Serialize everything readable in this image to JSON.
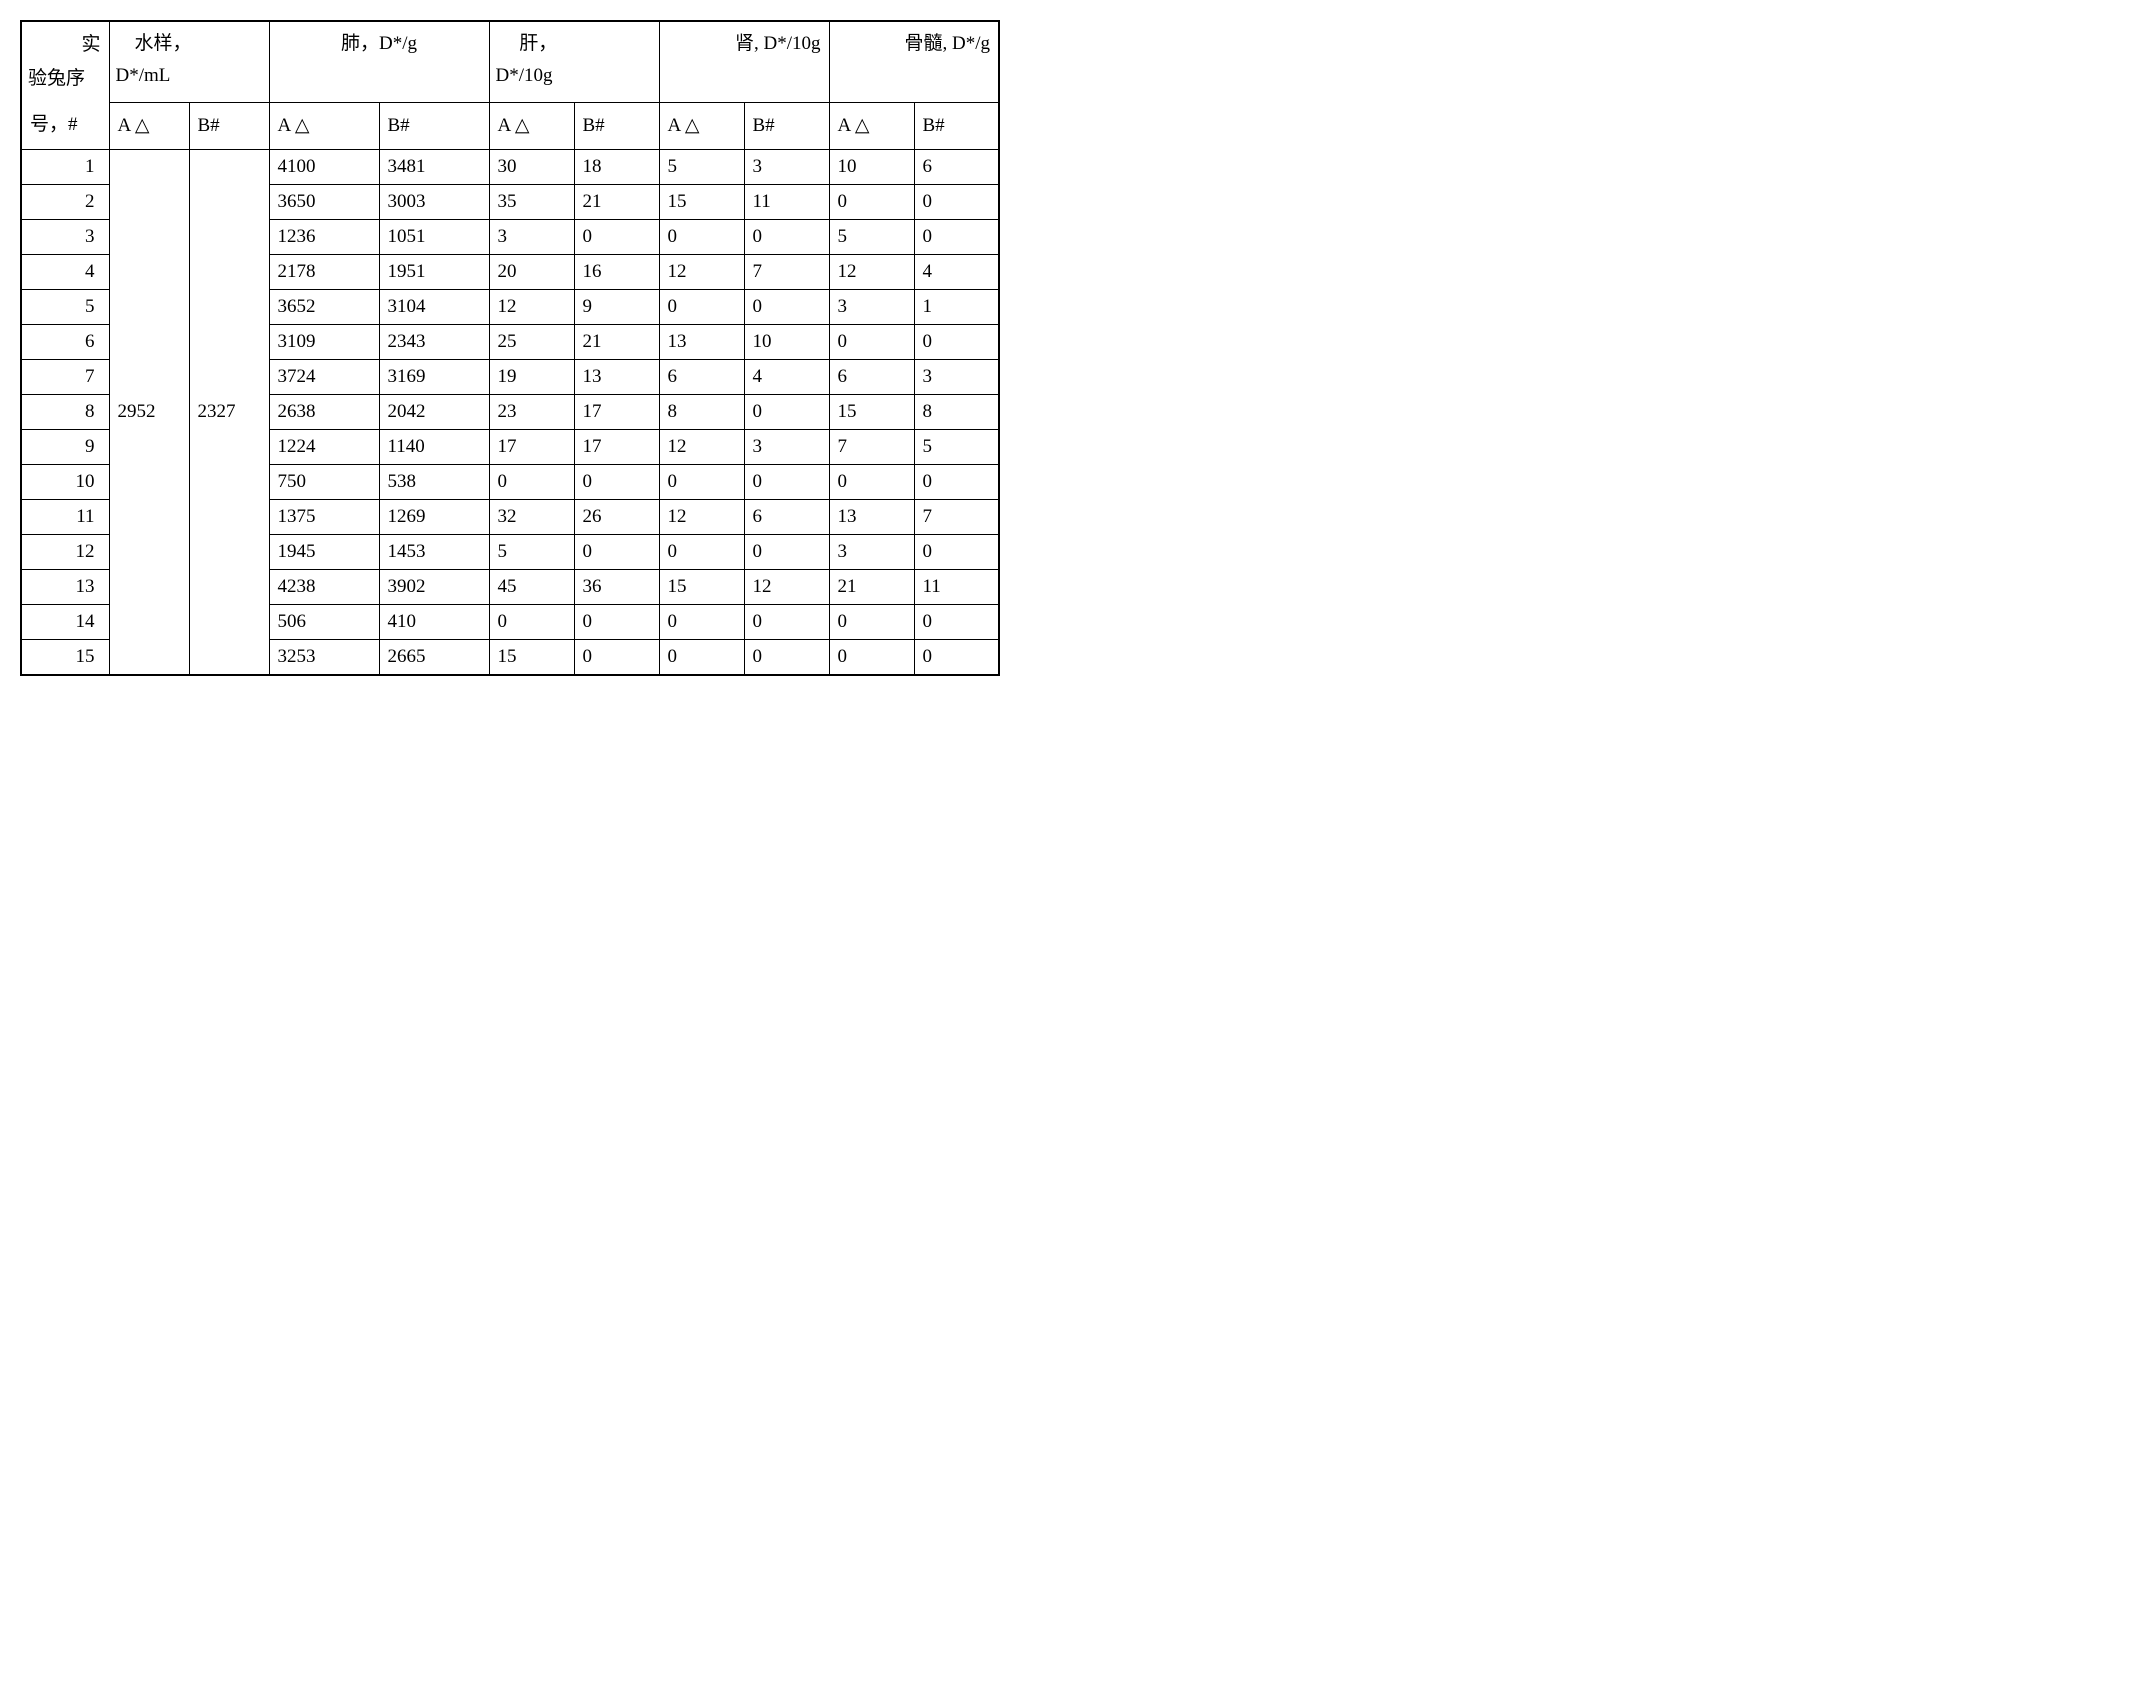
{
  "table": {
    "border_color": "#000000",
    "background_color": "#ffffff",
    "font_family": "Times New Roman / SimSun",
    "header_fontsize": 19,
    "cell_fontsize": 19,
    "row_header_top": "实",
    "row_header_mid": "验兔序",
    "row_header_bot": "号，#",
    "groups": {
      "water": {
        "label": "水样，",
        "sublabel": "D*/mL",
        "subcols": [
          "A △",
          "B#"
        ]
      },
      "lung": {
        "label": "肺，D*/g",
        "subcols": [
          "A △",
          "B#"
        ]
      },
      "liver": {
        "label": "肝，",
        "sublabel": "D*/10g",
        "subcols": [
          "A △",
          "B#"
        ]
      },
      "kidney": {
        "label": "肾, D*/10g",
        "subcols": [
          "A △",
          "B#"
        ]
      },
      "bone": {
        "label": "骨髓, D*/g",
        "subcols": [
          "A △",
          "B#"
        ]
      }
    },
    "water_merged": {
      "a": "2952",
      "b": "2327"
    },
    "rows": [
      {
        "n": "1",
        "lung_a": "4100",
        "lung_b": "3481",
        "liver_a": "30",
        "liver_b": "18",
        "kid_a": "5",
        "kid_b": "3",
        "bone_a": "10",
        "bone_b": "6"
      },
      {
        "n": "2",
        "lung_a": "3650",
        "lung_b": "3003",
        "liver_a": "35",
        "liver_b": "21",
        "kid_a": "15",
        "kid_b": "11",
        "bone_a": "0",
        "bone_b": "0"
      },
      {
        "n": "3",
        "lung_a": "1236",
        "lung_b": "1051",
        "liver_a": "3",
        "liver_b": "0",
        "kid_a": "0",
        "kid_b": "0",
        "bone_a": "5",
        "bone_b": "0"
      },
      {
        "n": "4",
        "lung_a": "2178",
        "lung_b": "1951",
        "liver_a": "20",
        "liver_b": "16",
        "kid_a": "12",
        "kid_b": "7",
        "bone_a": "12",
        "bone_b": "4"
      },
      {
        "n": "5",
        "lung_a": "3652",
        "lung_b": "3104",
        "liver_a": "12",
        "liver_b": "9",
        "kid_a": "0",
        "kid_b": "0",
        "bone_a": "3",
        "bone_b": "1"
      },
      {
        "n": "6",
        "lung_a": "3109",
        "lung_b": "2343",
        "liver_a": "25",
        "liver_b": "21",
        "kid_a": "13",
        "kid_b": "10",
        "bone_a": "0",
        "bone_b": "0"
      },
      {
        "n": "7",
        "lung_a": "3724",
        "lung_b": "3169",
        "liver_a": "19",
        "liver_b": "13",
        "kid_a": "6",
        "kid_b": "4",
        "bone_a": "6",
        "bone_b": "3"
      },
      {
        "n": "8",
        "lung_a": "2638",
        "lung_b": "2042",
        "liver_a": "23",
        "liver_b": "17",
        "kid_a": "8",
        "kid_b": "0",
        "bone_a": "15",
        "bone_b": "8"
      },
      {
        "n": "9",
        "lung_a": "1224",
        "lung_b": "1140",
        "liver_a": "17",
        "liver_b": "17",
        "kid_a": "12",
        "kid_b": "3",
        "bone_a": "7",
        "bone_b": "5"
      },
      {
        "n": "10",
        "lung_a": "750",
        "lung_b": "538",
        "liver_a": "0",
        "liver_b": "0",
        "kid_a": "0",
        "kid_b": "0",
        "bone_a": "0",
        "bone_b": "0"
      },
      {
        "n": "11",
        "lung_a": "1375",
        "lung_b": "1269",
        "liver_a": "32",
        "liver_b": "26",
        "kid_a": "12",
        "kid_b": "6",
        "bone_a": "13",
        "bone_b": "7"
      },
      {
        "n": "12",
        "lung_a": "1945",
        "lung_b": "1453",
        "liver_a": "5",
        "liver_b": "0",
        "kid_a": "0",
        "kid_b": "0",
        "bone_a": "3",
        "bone_b": "0"
      },
      {
        "n": "13",
        "lung_a": "4238",
        "lung_b": "3902",
        "liver_a": "45",
        "liver_b": "36",
        "kid_a": "15",
        "kid_b": "12",
        "bone_a": "21",
        "bone_b": "11"
      },
      {
        "n": "14",
        "lung_a": "506",
        "lung_b": "410",
        "liver_a": "0",
        "liver_b": "0",
        "kid_a": "0",
        "kid_b": "0",
        "bone_a": "0",
        "bone_b": "0"
      },
      {
        "n": "15",
        "lung_a": "3253",
        "lung_b": "2665",
        "liver_a": "15",
        "liver_b": "0",
        "kid_a": "0",
        "kid_b": "0",
        "bone_a": "0",
        "bone_b": "0"
      }
    ]
  }
}
